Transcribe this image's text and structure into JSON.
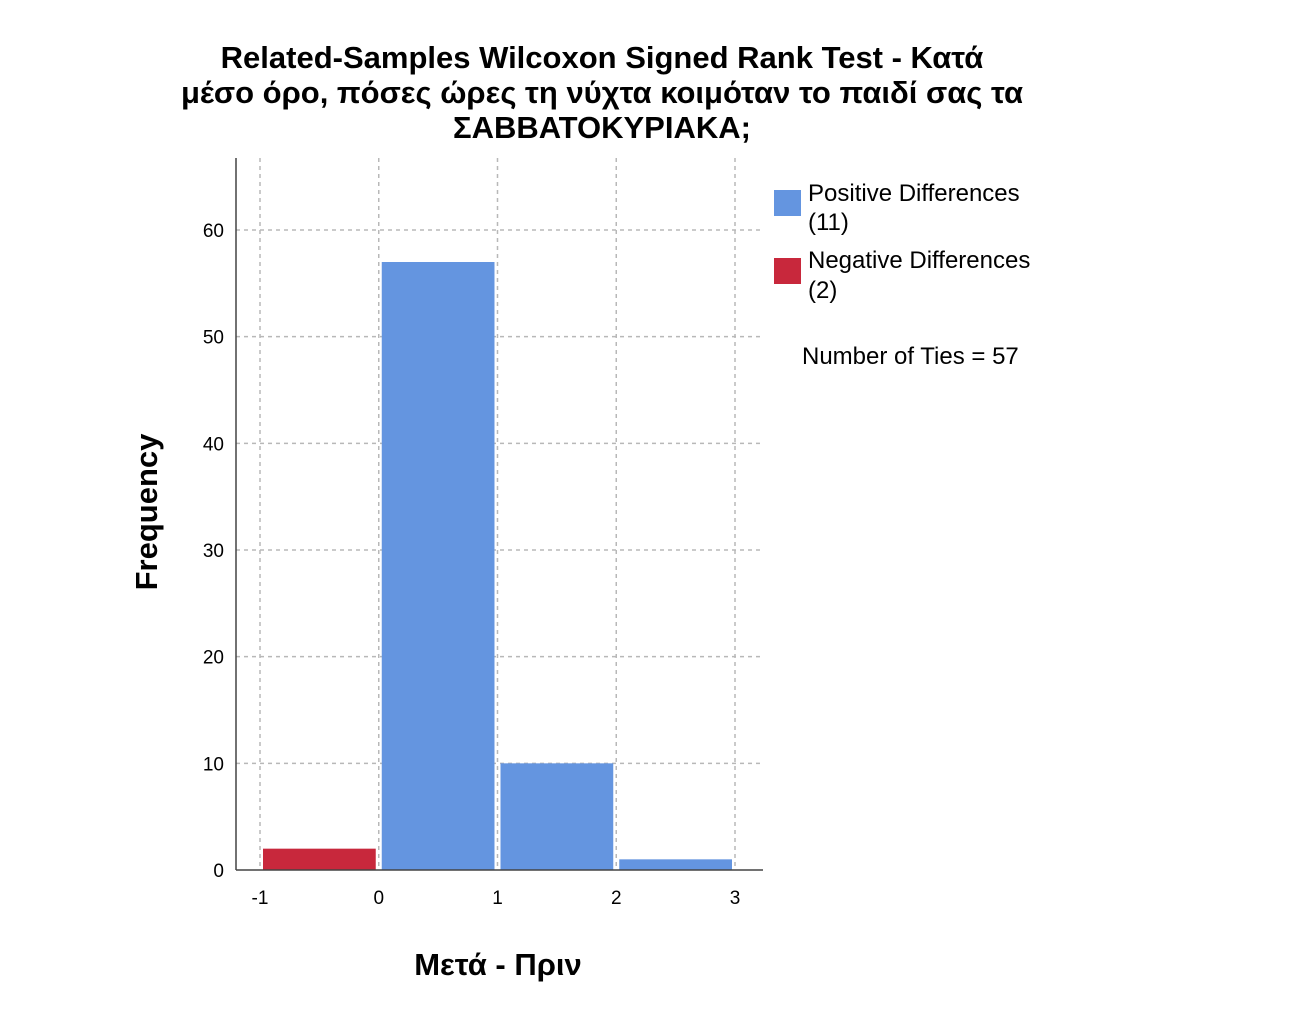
{
  "chart_data": {
    "type": "bar",
    "title_lines": [
      "Related-Samples Wilcoxon Signed Rank Test - Κατά",
      "μέσο όρο, πόσες ώρες τη νύχτα κοιμόταν το παιδί σας τα",
      "ΣΑΒΒΑΤΟΚΥΡΙΑΚΑ;"
    ],
    "xlabel": "Μετά - Πριν",
    "ylabel": "Frequency",
    "xlim": [
      -1,
      3
    ],
    "ylim": [
      0,
      66
    ],
    "x_ticks": [
      -1,
      0,
      1,
      2,
      3
    ],
    "y_ticks": [
      0,
      10,
      20,
      30,
      40,
      50,
      60
    ],
    "grid": true,
    "bins": [
      {
        "x0": -1,
        "x1": 0,
        "value": 2,
        "series": "negative"
      },
      {
        "x0": 0,
        "x1": 1,
        "value": 57,
        "series": "positive"
      },
      {
        "x0": 1,
        "x1": 2,
        "value": 10,
        "series": "positive"
      },
      {
        "x0": 2,
        "x1": 3,
        "value": 1,
        "series": "positive"
      }
    ],
    "series": [
      {
        "id": "positive",
        "name_line1": "Positive Differences",
        "name_line2": "(11)",
        "color": "#6495e0"
      },
      {
        "id": "negative",
        "name_line1": "Negative Differences",
        "name_line2": "(2)",
        "color": "#c8283c"
      }
    ],
    "legend_position": "top-right",
    "annotation": "Number of Ties = 57"
  }
}
